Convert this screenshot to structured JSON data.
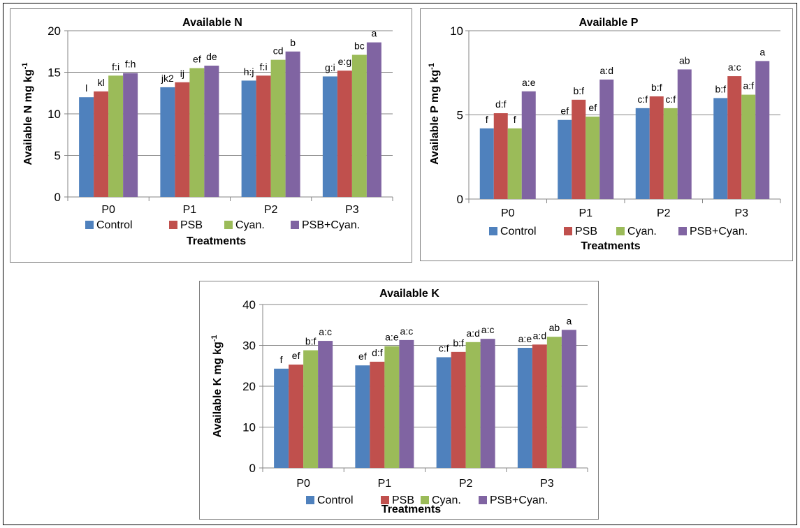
{
  "colors": {
    "Control": "#4f81bd",
    "PSB": "#c0504d",
    "Cyan.": "#9bbb59",
    "PSB+Cyan.": "#8064a2",
    "grid": "#868686"
  },
  "chart_data": [
    {
      "type": "bar",
      "title": "Available N",
      "xlabel": "Treatments",
      "ylabel": "Available N mg kg",
      "ylabel_sup": "-1",
      "categories": [
        "P0",
        "P1",
        "P2",
        "P3"
      ],
      "ylim": [
        0,
        20
      ],
      "yticks": [
        "0",
        "5",
        "10",
        "15",
        "20"
      ],
      "grid": true,
      "legend_position": "bottom",
      "series": [
        {
          "name": "Control",
          "values": [
            12.0,
            13.2,
            14.0,
            14.5
          ],
          "labels": [
            "l",
            "jk2",
            "h:j",
            "g:i"
          ]
        },
        {
          "name": "PSB",
          "values": [
            12.7,
            13.8,
            14.6,
            15.2
          ],
          "labels": [
            "kl",
            "ij",
            "f:i",
            "e:g"
          ]
        },
        {
          "name": "Cyan.",
          "values": [
            14.6,
            15.5,
            16.5,
            17.1
          ],
          "labels": [
            "f:i",
            "ef",
            "cd",
            "bc"
          ]
        },
        {
          "name": "PSB+Cyan.",
          "values": [
            14.9,
            15.8,
            17.5,
            18.6
          ],
          "labels": [
            "f:h",
            "de",
            "b",
            "a"
          ]
        }
      ]
    },
    {
      "type": "bar",
      "title": "Available P",
      "xlabel": "Treatments",
      "ylabel": "Available P mg kg",
      "ylabel_sup": "-1",
      "categories": [
        "P0",
        "P1",
        "P2",
        "P3"
      ],
      "ylim": [
        0,
        10
      ],
      "yticks": [
        "0",
        "5",
        "10"
      ],
      "grid": true,
      "legend_position": "bottom",
      "series": [
        {
          "name": "Control",
          "values": [
            4.2,
            4.7,
            5.4,
            6.0
          ],
          "labels": [
            "f",
            "ef",
            "c:f",
            "b:f"
          ]
        },
        {
          "name": "PSB",
          "values": [
            5.1,
            5.9,
            6.1,
            7.3
          ],
          "labels": [
            "d:f",
            "b:f",
            "b:f",
            "a:c"
          ]
        },
        {
          "name": "Cyan.",
          "values": [
            4.2,
            4.9,
            5.4,
            6.2
          ],
          "labels": [
            "f",
            "ef",
            "c:f",
            "a:f"
          ]
        },
        {
          "name": "PSB+Cyan.",
          "values": [
            6.4,
            7.1,
            7.7,
            8.2
          ],
          "labels": [
            "a:e",
            "a:d",
            "ab",
            "a"
          ]
        }
      ]
    },
    {
      "type": "bar",
      "title": "Available K",
      "xlabel": "Treatments",
      "ylabel": "Available K mg kg",
      "ylabel_sup": "-1",
      "categories": [
        "P0",
        "P1",
        "P2",
        "P3"
      ],
      "ylim": [
        0,
        40
      ],
      "yticks": [
        "0",
        "10",
        "20",
        "30",
        "40"
      ],
      "grid": true,
      "legend_position": "bottom",
      "series": [
        {
          "name": "Control",
          "values": [
            24.3,
            25.1,
            27.1,
            29.4
          ],
          "labels": [
            "f",
            "ef",
            "c:f",
            "a:e"
          ]
        },
        {
          "name": "PSB",
          "values": [
            25.3,
            26.0,
            28.4,
            30.2
          ],
          "labels": [
            "ef",
            "d:f",
            "b:f",
            "a:d"
          ]
        },
        {
          "name": "Cyan.",
          "values": [
            28.8,
            29.8,
            30.8,
            32.1
          ],
          "labels": [
            "b:f",
            "a:e",
            "a:d",
            "ab"
          ]
        },
        {
          "name": "PSB+Cyan.",
          "values": [
            31.1,
            31.3,
            31.6,
            33.8
          ],
          "labels": [
            "a:c",
            "a:c",
            "a:c",
            "a"
          ]
        }
      ]
    }
  ]
}
